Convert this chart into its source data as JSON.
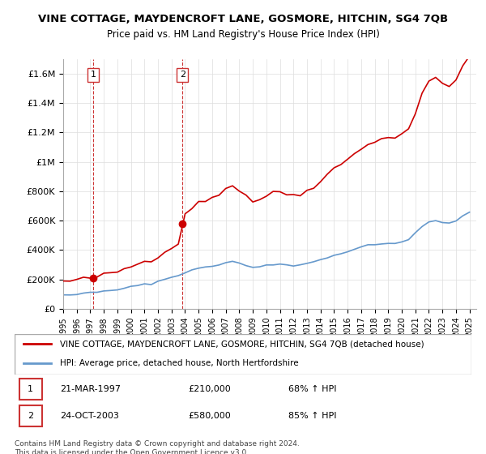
{
  "title": "VINE COTTAGE, MAYDENCROFT LANE, GOSMORE, HITCHIN, SG4 7QB",
  "subtitle": "Price paid vs. HM Land Registry's House Price Index (HPI)",
  "legend_line1": "VINE COTTAGE, MAYDENCROFT LANE, GOSMORE, HITCHIN, SG4 7QB (detached house)",
  "legend_line2": "HPI: Average price, detached house, North Hertfordshire",
  "table_rows": [
    {
      "num": "1",
      "date": "21-MAR-1997",
      "price": "£210,000",
      "hpi": "68% ↑ HPI"
    },
    {
      "num": "2",
      "date": "24-OCT-2003",
      "price": "£580,000",
      "hpi": "85% ↑ HPI"
    }
  ],
  "footnote": "Contains HM Land Registry data © Crown copyright and database right 2024.\nThis data is licensed under the Open Government Licence v3.0.",
  "sale1_year": 1997.22,
  "sale1_price": 210000,
  "sale2_year": 2003.81,
  "sale2_price": 580000,
  "red_color": "#cc0000",
  "blue_color": "#6699cc",
  "dashed_color": "#cc0000",
  "ylim_max": 1700000,
  "background_chart": "#ffffff",
  "background_legend": "#ffffff",
  "grid_color": "#dddddd",
  "sale_marker_color": "#cc0000",
  "dashed_line_color": "#cc3333"
}
